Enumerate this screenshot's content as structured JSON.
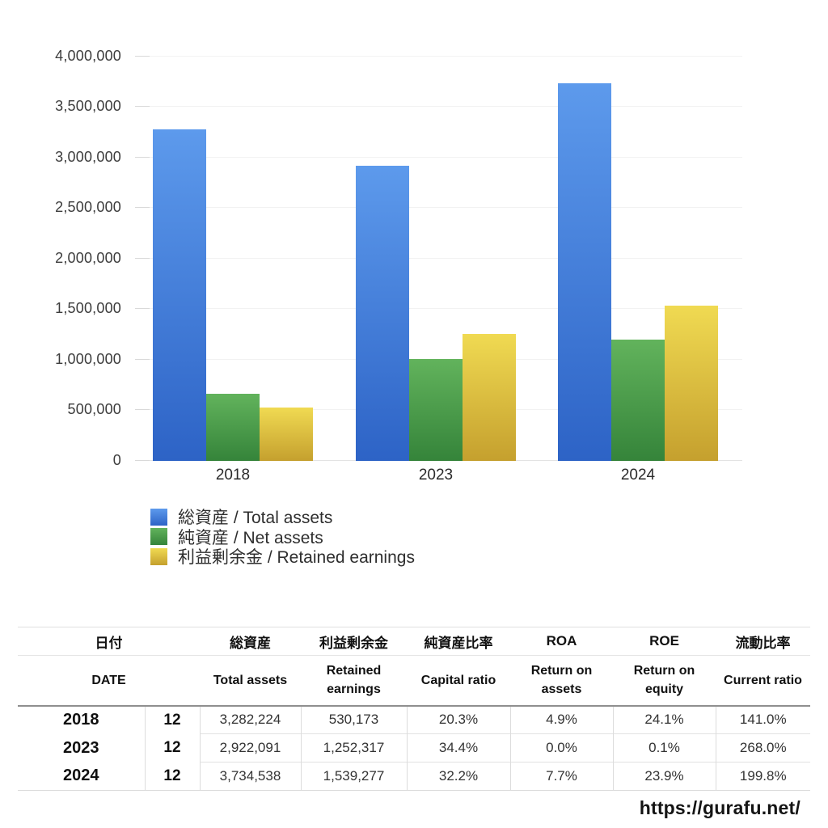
{
  "chart_data": {
    "type": "bar",
    "title": "",
    "xlabel": "",
    "ylabel": "",
    "categories": [
      "2018",
      "2023",
      "2024"
    ],
    "series": [
      {
        "name": "総資産 / Total assets",
        "color_top": "#5d9aec",
        "color_bottom": "#2d63c6",
        "values": [
          3282224,
          2922091,
          3734538
        ]
      },
      {
        "name": "純資産 / Net assets",
        "color_top": "#62b35c",
        "color_bottom": "#35843a",
        "values": [
          666000,
          1005000,
          1202000
        ]
      },
      {
        "name": "利益剰余金 / Retained earnings",
        "color_top": "#f0da52",
        "color_bottom": "#c5a02e",
        "values": [
          530173,
          1252317,
          1539277
        ]
      }
    ],
    "ylim": [
      0,
      4000000
    ],
    "y_tick_step": 500000,
    "y_ticks": [
      "0",
      "500,000",
      "1,000,000",
      "1,500,000",
      "2,000,000",
      "2,500,000",
      "3,000,000",
      "3,500,000",
      "4,000,000"
    ],
    "grid": true,
    "legend_position": "bottom-left"
  },
  "table": {
    "headers_jp": [
      "日付",
      "総資産",
      "利益剰余金",
      "純資産比率",
      "ROA",
      "ROE",
      "流動比率"
    ],
    "headers_en": [
      "DATE",
      "Total assets",
      "Retained earnings",
      "Capital ratio",
      "Return on assets",
      "Return on equity",
      "Current ratio"
    ],
    "rows": [
      {
        "year": "2018",
        "month": "12",
        "total_assets": "3,282,224",
        "retained_earnings": "530,173",
        "capital_ratio": "20.3%",
        "roa": "4.9%",
        "roe": "24.1%",
        "current_ratio": "141.0%"
      },
      {
        "year": "2023",
        "month": "12",
        "total_assets": "2,922,091",
        "retained_earnings": "1,252,317",
        "capital_ratio": "34.4%",
        "roa": "0.0%",
        "roe": "0.1%",
        "current_ratio": "268.0%"
      },
      {
        "year": "2024",
        "month": "12",
        "total_assets": "3,734,538",
        "retained_earnings": "1,539,277",
        "capital_ratio": "32.2%",
        "roa": "7.7%",
        "roe": "23.9%",
        "current_ratio": "199.8%"
      }
    ]
  },
  "footer": {
    "url": "https://gurafu.net/"
  }
}
